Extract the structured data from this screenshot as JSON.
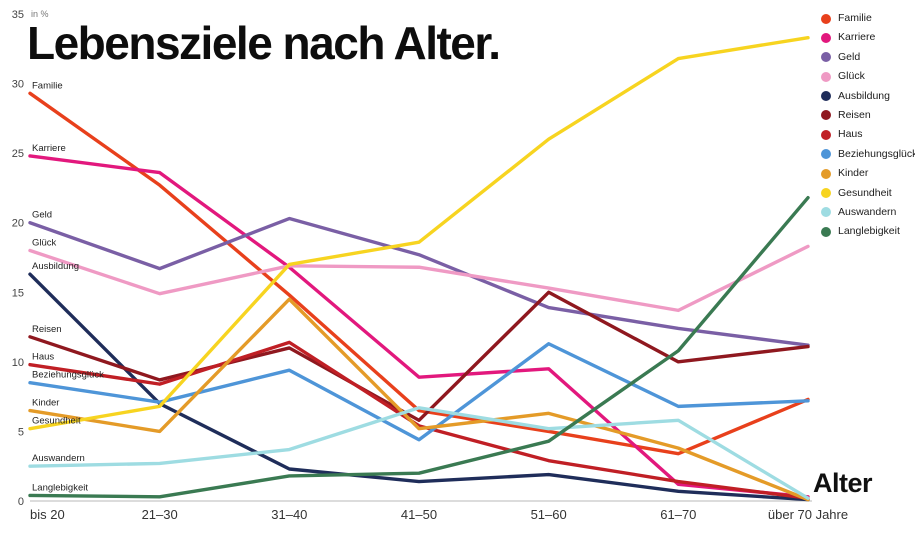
{
  "chart_data": {
    "type": "line",
    "title": "Lebensziele nach Alter.",
    "y_unit_label": "in %",
    "xlabel": "Alter",
    "categories": [
      "bis 20",
      "21–30",
      "31–40",
      "41–50",
      "51–60",
      "61–70",
      "über 70 Jahre"
    ],
    "ylim": [
      0,
      35
    ],
    "yticks": [
      0,
      5,
      10,
      15,
      20,
      25,
      30,
      35
    ],
    "grid": false,
    "legend_position": "top-right",
    "series": [
      {
        "name": "Familie",
        "color": "#e8401c",
        "values": [
          29.3,
          22.7,
          14.8,
          6.5,
          5.0,
          3.4,
          7.3
        ]
      },
      {
        "name": "Karriere",
        "color": "#e2187d",
        "values": [
          24.8,
          23.6,
          16.8,
          8.9,
          9.5,
          1.2,
          0.3
        ]
      },
      {
        "name": "Geld",
        "color": "#7a5fa5",
        "values": [
          20.0,
          16.7,
          20.3,
          17.7,
          13.9,
          12.4,
          11.2
        ]
      },
      {
        "name": "Glück",
        "color": "#ef9ac4",
        "values": [
          18.0,
          14.9,
          16.9,
          16.8,
          15.3,
          13.7,
          18.3
        ]
      },
      {
        "name": "Ausbildung",
        "color": "#1f2d5a",
        "values": [
          16.3,
          7.0,
          2.3,
          1.4,
          1.9,
          0.7,
          0.1
        ]
      },
      {
        "name": "Reisen",
        "color": "#8f181f",
        "values": [
          11.8,
          8.7,
          11.0,
          5.8,
          15.0,
          10.0,
          11.1
        ]
      },
      {
        "name": "Haus",
        "color": "#c01f25",
        "values": [
          9.8,
          8.4,
          11.4,
          5.4,
          2.9,
          1.4,
          0.2
        ]
      },
      {
        "name": "Beziehungsglück",
        "color": "#4e95d8",
        "values": [
          8.5,
          7.1,
          9.4,
          4.4,
          11.3,
          6.8,
          7.2
        ]
      },
      {
        "name": "Kinder",
        "color": "#e49b28",
        "values": [
          6.5,
          5.0,
          14.5,
          5.2,
          6.3,
          3.8,
          0.1
        ]
      },
      {
        "name": "Gesundheit",
        "color": "#f7d420",
        "values": [
          5.2,
          6.8,
          17.0,
          18.6,
          26.0,
          31.8,
          33.3
        ]
      },
      {
        "name": "Auswandern",
        "color": "#9edce2",
        "values": [
          2.5,
          2.7,
          3.7,
          6.7,
          5.2,
          5.8,
          0.2
        ]
      },
      {
        "name": "Langlebigkeit",
        "color": "#3a7a52",
        "values": [
          0.4,
          0.3,
          1.8,
          2.0,
          4.3,
          10.8,
          21.8
        ]
      }
    ]
  }
}
